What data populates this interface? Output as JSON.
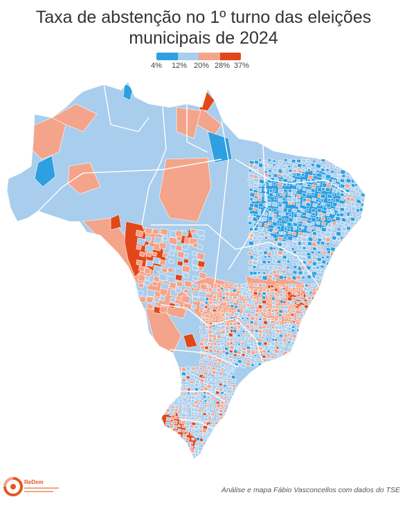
{
  "title": {
    "line1": "Taxa de abstenção no 1º turno das eleições",
    "line2": "municipais de 2024"
  },
  "legend": {
    "labels": [
      "4%",
      "12%",
      "20%",
      "28%",
      "37%"
    ],
    "colors": [
      "#2e9fe0",
      "#a9cdec",
      "#a9cdec",
      "#f4a48a",
      "#e2471a"
    ]
  },
  "colors": {
    "low": "#2e9fe0",
    "mid_low": "#a9cdec",
    "mid_high": "#f4a48a",
    "high": "#e2471a",
    "border": "#ffffff"
  },
  "logo": {
    "name": "ReDem",
    "icon": "redem-logo-icon"
  },
  "credit": "Análise e mapa Fábio Vasconcellos com dados do TSE"
}
